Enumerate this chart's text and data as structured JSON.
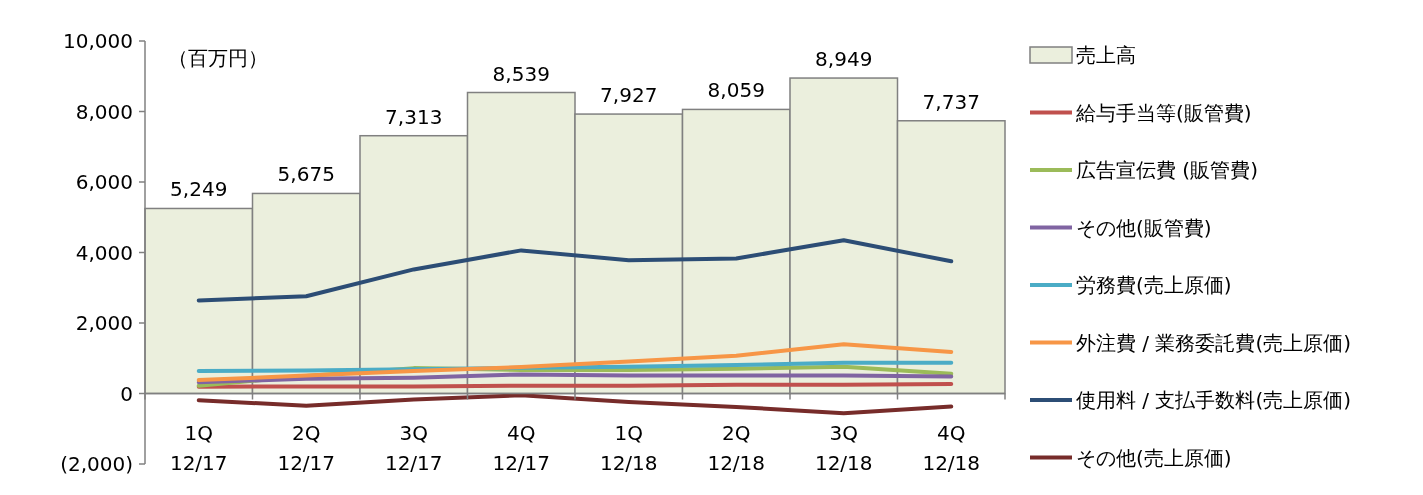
{
  "chart_data": {
    "type": "bar",
    "categories": [
      "1Q\n12/17",
      "2Q\n12/17",
      "3Q\n12/17",
      "4Q\n12/17",
      "1Q\n12/18",
      "2Q\n12/18",
      "3Q\n12/18",
      "4Q\n12/18"
    ],
    "series": [
      {
        "name": "売上高",
        "color": "#ebefdd",
        "values": [
          5249,
          5675,
          7313,
          8539,
          7927,
          8059,
          8949,
          7737
        ],
        "value_labels": [
          "5,249",
          "5,675",
          "7,313",
          "8,539",
          "7,927",
          "8,059",
          "8,949",
          "7,737"
        ]
      },
      {
        "name": "給与手当等(販管費)",
        "type": "line",
        "color": "#c0504d",
        "values": [
          190,
          200,
          200,
          220,
          220,
          250,
          250,
          270
        ]
      },
      {
        "name": "広告宣伝費 (販管費)",
        "type": "line",
        "color": "#9bbb59",
        "values": [
          220,
          500,
          720,
          670,
          670,
          700,
          760,
          560
        ]
      },
      {
        "name": "その他(販管費)",
        "type": "line",
        "color": "#8064a2",
        "values": [
          320,
          420,
          450,
          540,
          510,
          510,
          510,
          480
        ]
      },
      {
        "name": "労務費(売上原価)",
        "type": "line",
        "color": "#4bacc6",
        "values": [
          640,
          650,
          690,
          730,
          760,
          810,
          870,
          870
        ]
      },
      {
        "name": "外注費 / 業務委託費(売上原価)",
        "type": "line",
        "color": "#f79646",
        "values": [
          380,
          510,
          640,
          750,
          910,
          1070,
          1400,
          1180
        ]
      },
      {
        "name": "使用料 / 支払手数料(売上原価)",
        "type": "line",
        "color": "#2c4d75",
        "values": [
          2640,
          2760,
          3520,
          4060,
          3780,
          3830,
          4350,
          3750
        ]
      },
      {
        "name": "その他(売上原価)",
        "type": "line",
        "color": "#772c2a",
        "values": [
          -190,
          -350,
          -170,
          -50,
          -240,
          -380,
          -560,
          -370
        ]
      }
    ],
    "ylim": [
      -2000,
      10000
    ],
    "yticks": [
      {
        "value": -2000,
        "label": "(2,000)"
      },
      {
        "value": 0,
        "label": "0"
      },
      {
        "value": 2000,
        "label": "2,000"
      },
      {
        "value": 4000,
        "label": "4,000"
      },
      {
        "value": 6000,
        "label": "6,000"
      },
      {
        "value": 8000,
        "label": "8,000"
      },
      {
        "value": 10000,
        "label": "10,000"
      }
    ],
    "annotations": [
      "（百万円）"
    ],
    "legend": "right",
    "grid": false,
    "marker": "none"
  }
}
